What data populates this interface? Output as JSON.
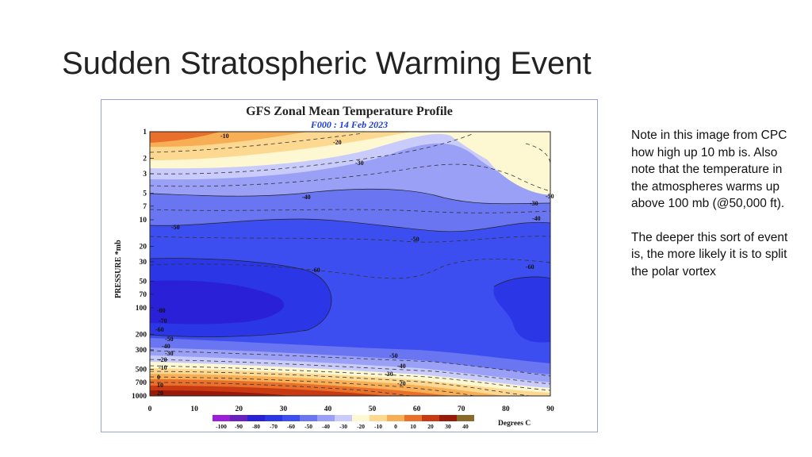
{
  "slide": {
    "title": "Sudden Stratospheric Warming Event"
  },
  "figure": {
    "title": "GFS Zonal Mean Temperature Profile",
    "subtitle": "F000 : 14 Feb 2023",
    "ylabel": "PRESSURE *mb",
    "x_ticks": [
      "0",
      "10",
      "20",
      "30",
      "40",
      "50",
      "60",
      "70",
      "80",
      "90"
    ],
    "y_ticks": [
      "1",
      "2",
      "3",
      "5",
      "7",
      "10",
      "20",
      "30",
      "50",
      "70",
      "100",
      "200",
      "300",
      "500",
      "700",
      "1000"
    ],
    "colorbar": {
      "labels": [
        "-100",
        "-90",
        "-80",
        "-70",
        "-60",
        "-50",
        "-40",
        "-30",
        "-20",
        "-10",
        "0",
        "10",
        "20",
        "30",
        "40"
      ],
      "unit": "Degrees C",
      "colors": [
        "#9b1fd8",
        "#6a1fbf",
        "#2a20d8",
        "#2b36e6",
        "#3d4ef0",
        "#6a75f2",
        "#9aa0f6",
        "#c9ccfa",
        "#fdf8d2",
        "#fdd890",
        "#f8ae55",
        "#e8702a",
        "#c83a12",
        "#9a1a0a",
        "#8a6a2a"
      ]
    },
    "contour_labels": [
      "-10",
      "-20",
      "-30",
      "-40",
      "-50",
      "-50",
      "-60",
      "-60",
      "-30",
      "-40",
      "-50",
      "-80",
      "-70",
      "-60",
      "-50",
      "-40",
      "-30",
      "-20",
      "-10",
      "0",
      "10",
      "20",
      "-50",
      "-40",
      "-30",
      "-20"
    ]
  },
  "notes": {
    "paragraph1": "Note in this image from CPC how high up 10 mb is.  Also note that the temperature in the atmospheres warms up above 100 mb (@50,000 ft).",
    "paragraph2": "The deeper this sort of event is, the more likely it is to split the polar vortex"
  }
}
